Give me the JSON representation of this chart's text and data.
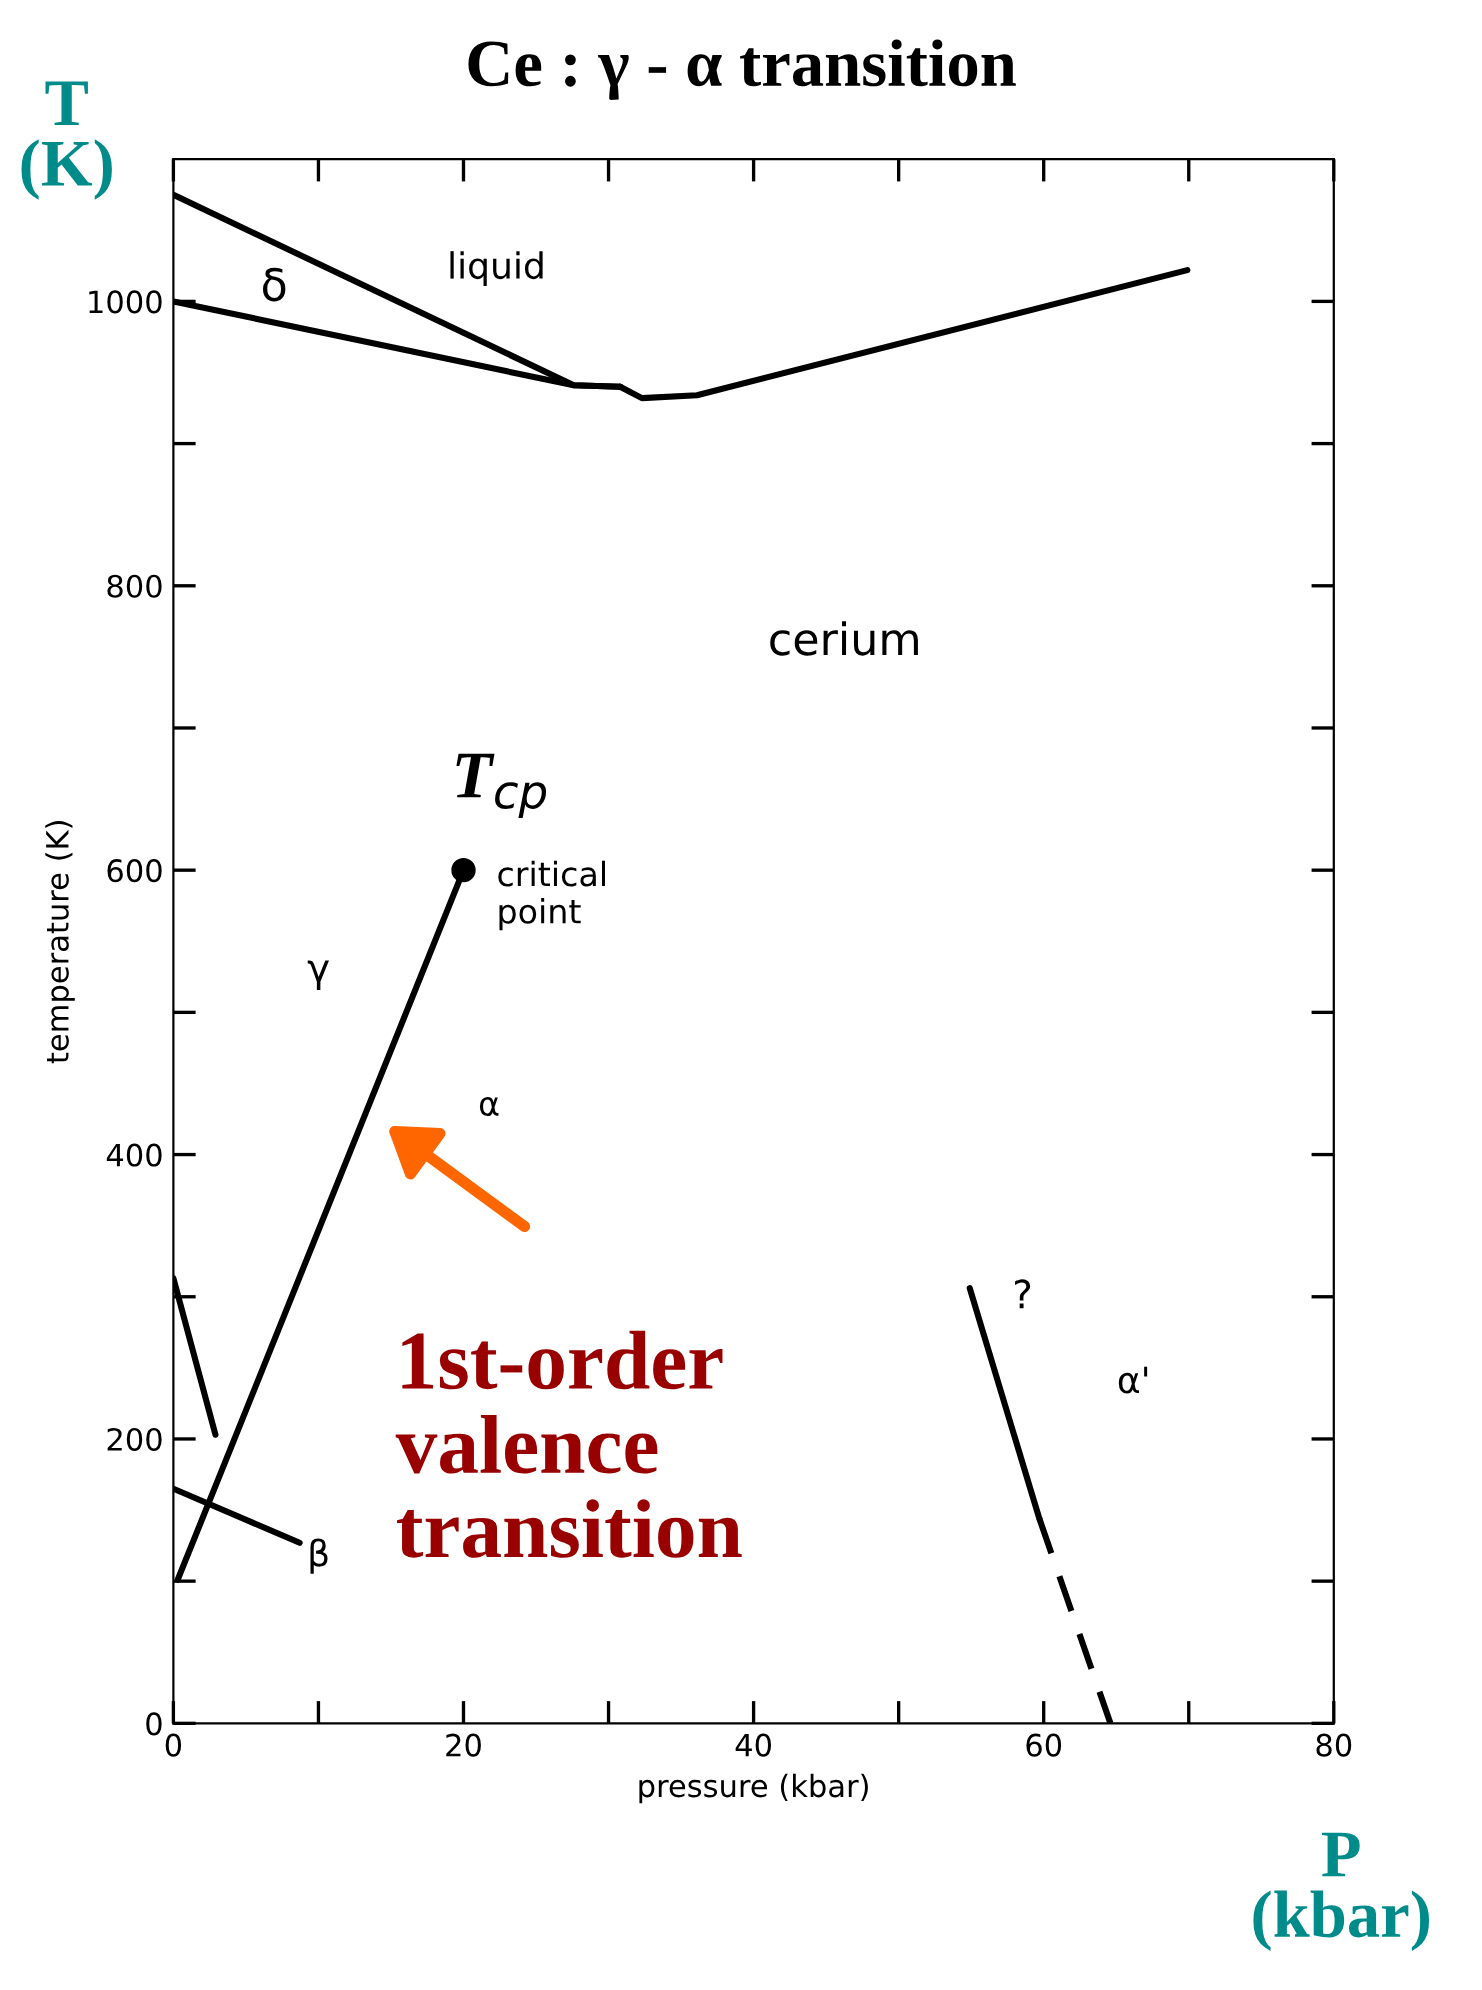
{
  "chart_data": {
    "type": "line",
    "title": "Ce : γ - α transition",
    "xlabel": "pressure (kbar)",
    "ylabel": "temperature (K)",
    "xlim": [
      0,
      80
    ],
    "ylim": [
      0,
      1100
    ],
    "xticks": [
      0,
      {
        "value": 10,
        "label": null
      },
      20,
      {
        "value": 30,
        "label": null
      },
      40,
      {
        "value": 50,
        "label": null
      },
      60,
      {
        "value": 70,
        "label": null
      },
      80
    ],
    "yticks": [
      0,
      {
        "value": 100,
        "label": null
      },
      200,
      {
        "value": 300,
        "label": null
      },
      400,
      {
        "value": 500,
        "label": null
      },
      600,
      {
        "value": 700,
        "label": null
      },
      800,
      {
        "value": 900,
        "label": null
      },
      1000
    ],
    "grid": false,
    "legend": false,
    "marker": "none",
    "line_style": "solid",
    "series": [
      {
        "color": "#000000",
        "x": [
          0,
          27.6,
          30.8
        ],
        "values": [
          1075,
          941,
          940
        ]
      },
      {
        "color": "#000000",
        "x": [
          0,
          27.6,
          30.8
        ],
        "values": [
          1000,
          941,
          940
        ]
      },
      {
        "color": "#000000",
        "x": [
          30.8,
          32.3,
          36.1,
          69.9
        ],
        "values": [
          940,
          932,
          934,
          1022
        ]
      },
      {
        "color": "#000000",
        "x": [
          0.3,
          20
        ],
        "values": [
          101,
          600
        ]
      },
      {
        "color": "#000000",
        "x": [
          0,
          2.9
        ],
        "values": [
          313,
          203
        ]
      },
      {
        "color": "#000000",
        "x": [
          0,
          8.7
        ],
        "values": [
          165,
          127
        ]
      },
      {
        "color": "#000000",
        "x": [
          54.9,
          59.7
        ],
        "values": [
          306,
          144
        ]
      },
      {
        "color": "#000000",
        "x": [
          59.7,
          64.6
        ],
        "values": [
          144,
          0
        ],
        "line_style": "dashed"
      },
      {
        "type": "scatter",
        "color": "#000000",
        "x": [
          20
        ],
        "values": [
          600
        ],
        "marker": "circle"
      }
    ],
    "annotations": [
      "liquid",
      "δ",
      "cerium",
      "γ",
      "α",
      "α'",
      "?",
      "β",
      "critical\npoint",
      "T$_{cp}$",
      "1st-order\nvalence\ntransition",
      "T\n(K)",
      "P\n(kbar)"
    ]
  }
}
